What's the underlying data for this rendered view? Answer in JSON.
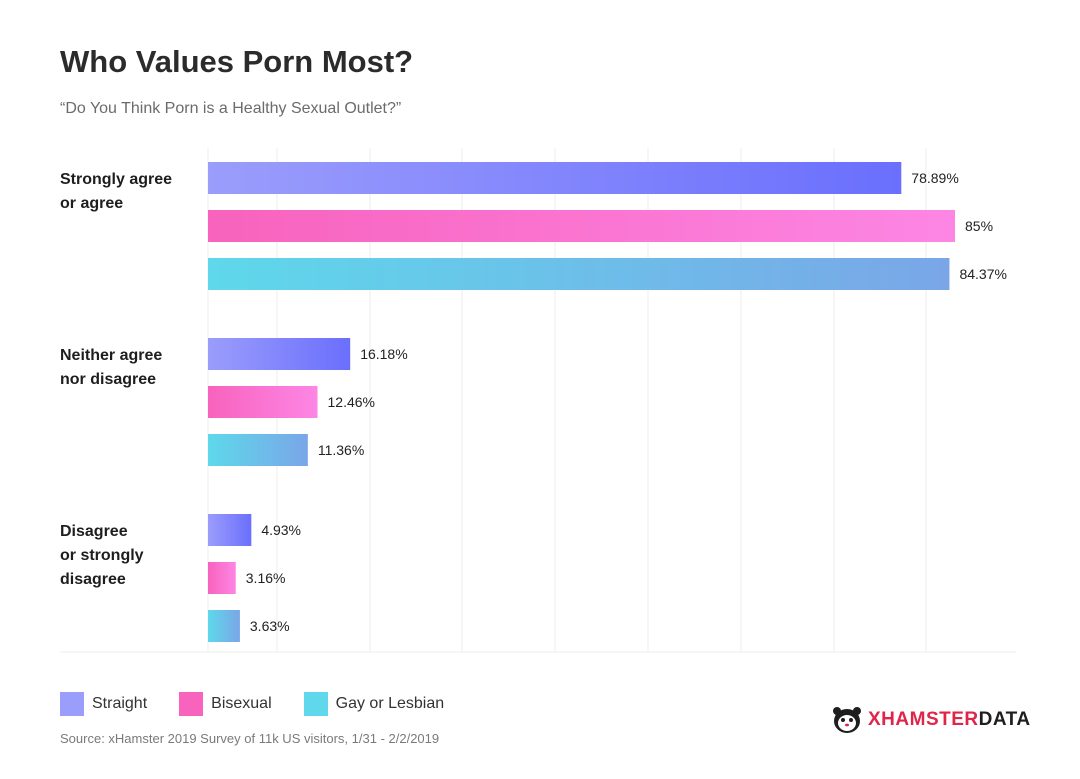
{
  "header": {
    "title": "Who Values Porn Most?",
    "subtitle": "“Do You Think Porn is a Healthy Sexual Outlet?”"
  },
  "chart_data": {
    "type": "bar",
    "orientation": "horizontal",
    "title": "Who Values Porn Most?",
    "subtitle": "“Do You Think Porn is a Healthy Sexual Outlet?”",
    "categories": [
      [
        "Strongly agree",
        "or agree"
      ],
      [
        "Neither agree",
        "nor disagree"
      ],
      [
        "Disagree",
        "or strongly",
        "disagree"
      ]
    ],
    "series": [
      {
        "name": "Straight",
        "values": [
          78.89,
          16.18,
          4.93
        ],
        "labels": [
          "78.89%",
          "16.18%",
          "4.93%"
        ],
        "color_start": "#9b9dfb",
        "color_end": "#6a6ffd"
      },
      {
        "name": "Bisexual",
        "values": [
          85,
          12.46,
          3.16
        ],
        "labels": [
          "85%",
          "12.46%",
          "3.16%"
        ],
        "color_start": "#f763bd",
        "color_end": "#fd86e4"
      },
      {
        "name": "Gay or Lesbian",
        "values": [
          84.37,
          11.36,
          3.63
        ],
        "labels": [
          "84.37%",
          "11.36%",
          "3.63%"
        ],
        "color_start": "#5ed8ea",
        "color_end": "#7aa6e8"
      }
    ],
    "xlim": [
      0,
      85
    ],
    "grid": true,
    "legend_position": "bottom-left"
  },
  "legend": {
    "items": [
      {
        "label": "Straight",
        "color": "#9b9dfb"
      },
      {
        "label": "Bisexual",
        "color": "#f763bd"
      },
      {
        "label": "Gay or Lesbian",
        "color": "#5ed8ea"
      }
    ]
  },
  "source": "Source: xHamster 2019 Survey of 11k US visitors, 1/31 - 2/2/2019",
  "brand": {
    "part1": "XHAMSTER",
    "part2": "DATA"
  }
}
